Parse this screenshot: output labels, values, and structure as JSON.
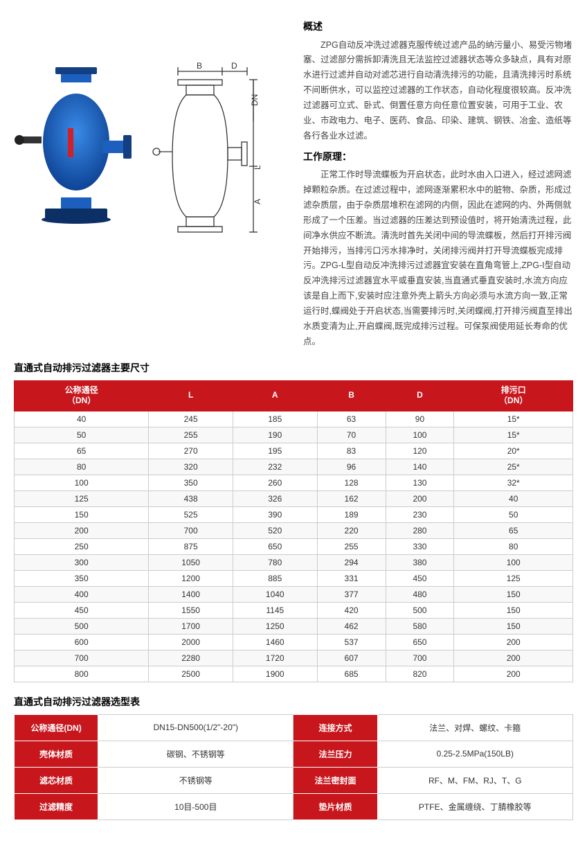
{
  "overview": {
    "title": "概述",
    "body": "ZPG自动反冲洗过滤器克服传统过滤产品的纳污量小、易受污物堵塞、过滤部分需拆卸清洗且无法监控过滤器状态等众多缺点，具有对原水进行过滤并自动对滤芯进行自动清洗排污的功能，且清洗排污时系统不间断供水，可以监控过滤器的工作状态，自动化程度很较高。反冲洗过滤器可立式、卧式、倒置任意方向任意位置安装，可用于工业、农业、市政电力、电子、医药、食品、印染、建筑、钢铁、冶金、造纸等各行各业水过滤。"
  },
  "principle": {
    "title": "工作原理：",
    "body": "正常工作时导流蝶板为开启状态，此时水由入口进入，经过滤网滤掉颗粒杂质。在过滤过程中，滤网逐渐累积水中的脏物、杂质，形成过滤杂质层，由于杂质层堆积在滤网的内侧，因此在滤网的内、外两侧就形成了一个压差。当过滤器的压差达到预设值时，将开始清洗过程，此间净水供应不断流。清洗时首先关闭中间的导流蝶板，然后打开排污阀开始排污，当排污口污水排净时，关闭排污阀并打开导流蝶板完成排污。ZPG-L型自动反冲洗排污过滤器宜安装在直角弯管上,ZPG-I型自动反冲洗排污过滤器宜水平或垂直安装,当直通式垂直安装时,水流方向应该是自上而下,安装时应注意外壳上箭头方向必须与水流方向一致,正常运行时,蝶阀处于开启状态,当需要排污时,关闭蝶阀,打开排污阀直至排出水质变清为止,开启蝶阀,既完成排污过程。可保泵阀使用延长寿命的优点。"
  },
  "dim_section_title": "直通式自动排污过滤器主要尺寸",
  "dim_table": {
    "headers": [
      "公称通径\n（DN）",
      "L",
      "A",
      "B",
      "D",
      "排污口\n（DN）"
    ],
    "rows": [
      [
        "40",
        "245",
        "185",
        "63",
        "90",
        "15*"
      ],
      [
        "50",
        "255",
        "190",
        "70",
        "100",
        "15*"
      ],
      [
        "65",
        "270",
        "195",
        "83",
        "120",
        "20*"
      ],
      [
        "80",
        "320",
        "232",
        "96",
        "140",
        "25*"
      ],
      [
        "100",
        "350",
        "260",
        "128",
        "130",
        "32*"
      ],
      [
        "125",
        "438",
        "326",
        "162",
        "200",
        "40"
      ],
      [
        "150",
        "525",
        "390",
        "189",
        "230",
        "50"
      ],
      [
        "200",
        "700",
        "520",
        "220",
        "280",
        "65"
      ],
      [
        "250",
        "875",
        "650",
        "255",
        "330",
        "80"
      ],
      [
        "300",
        "1050",
        "780",
        "294",
        "380",
        "100"
      ],
      [
        "350",
        "1200",
        "885",
        "331",
        "450",
        "125"
      ],
      [
        "400",
        "1400",
        "1040",
        "377",
        "480",
        "150"
      ],
      [
        "450",
        "1550",
        "1145",
        "420",
        "500",
        "150"
      ],
      [
        "500",
        "1700",
        "1250",
        "462",
        "580",
        "150"
      ],
      [
        "600",
        "2000",
        "1460",
        "537",
        "650",
        "200"
      ],
      [
        "700",
        "2280",
        "1720",
        "607",
        "700",
        "200"
      ],
      [
        "800",
        "2500",
        "1900",
        "685",
        "820",
        "200"
      ]
    ]
  },
  "sel_section_title": "直通式自动排污过滤器选型表",
  "sel_table": {
    "rows": [
      [
        "公称通径(DN)",
        "DN15-DN500(1/2\"-20\")",
        "连接方式",
        "法兰、对焊、螺纹、卡箍"
      ],
      [
        "壳体材质",
        "碳钢、不锈钢等",
        "法兰压力",
        "0.25-2.5MPa(150LB)"
      ],
      [
        "滤芯材质",
        "不锈钢等",
        "法兰密封面",
        "RF、M、FM、RJ、T、G"
      ],
      [
        "过滤精度",
        "10目-500目",
        "垫片材质",
        "PTFE、金属缠绕、丁腈橡胶等"
      ]
    ]
  },
  "diagram_labels": {
    "B": "B",
    "D": "D",
    "DN": "DN",
    "L": "L",
    "A": "A"
  },
  "colors": {
    "header_red": "#c8161d",
    "border_gray": "#cccccc",
    "product_blue": "#1c5fbf"
  }
}
